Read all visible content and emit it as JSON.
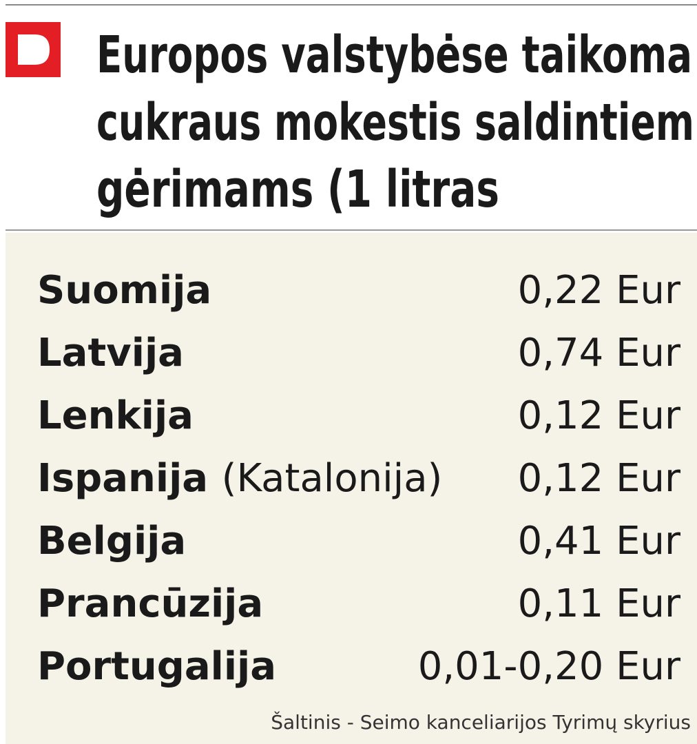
{
  "header": {
    "title": [
      "Europos valstybėse taikoma",
      "cukraus mokestis saldintiem",
      "gėrimams (1 litras"
    ]
  },
  "table": {
    "rows": [
      {
        "country": "Suomija",
        "value": "0,22 Eur"
      },
      {
        "country": "Latvija",
        "value": "0,74 Eur"
      },
      {
        "country": "Lenkija",
        "value": "0,12 Eur"
      },
      {
        "country": "Ispanija",
        "note": "(Katalonija)",
        "value": "0,12 Eur"
      },
      {
        "country": "Belgija",
        "value": "0,41 Eur"
      },
      {
        "country": "Prancūzija",
        "value": "0,11 Eur"
      },
      {
        "country": "Portugalija",
        "value": "0,01-0,20 Eur"
      }
    ]
  },
  "source": "Šaltinis - Seimo kanceliarijos Tyrimų skyrius"
}
